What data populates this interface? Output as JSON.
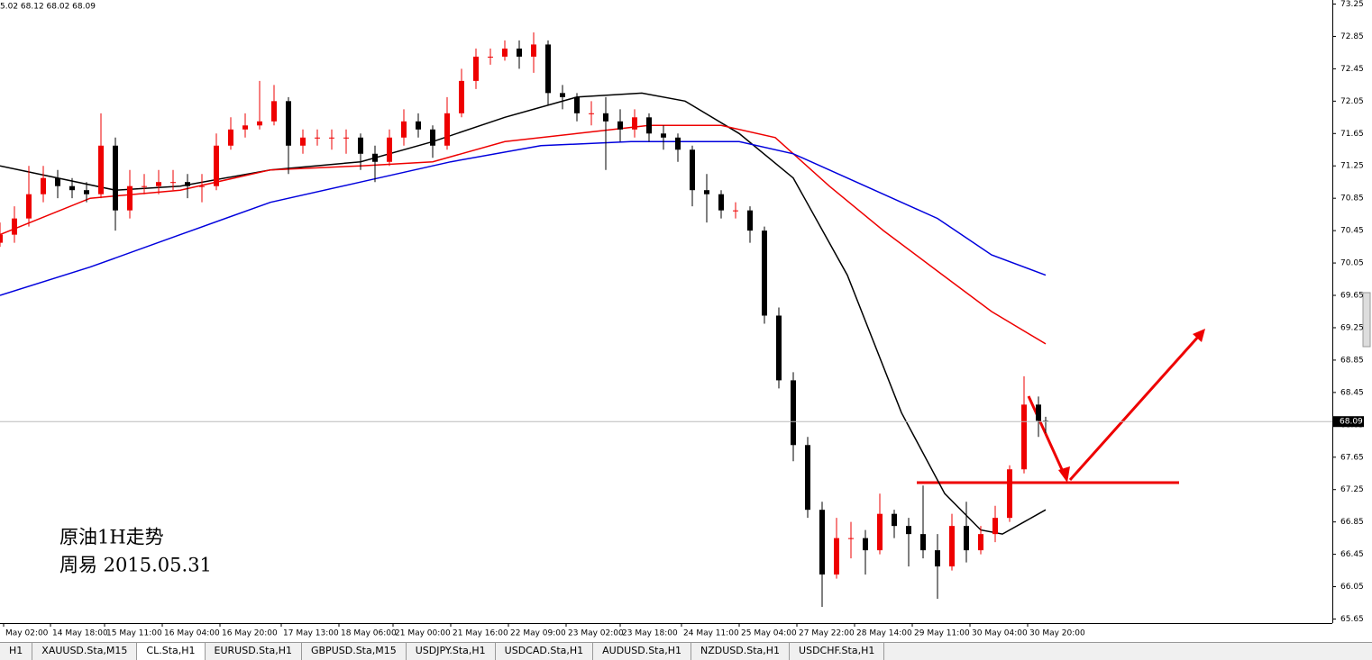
{
  "chart_data": {
    "type": "candlestick",
    "header": "5.02 68.12 68.02 68.09",
    "annotations": [
      "原油1H走势",
      "周易 2015.05.31"
    ],
    "current_price": 68.09,
    "xlim": [
      0,
      369.5
    ],
    "ylim": [
      65.6,
      73.3
    ],
    "yticks": [
      65.65,
      66.05,
      66.45,
      66.85,
      67.25,
      67.65,
      68.05,
      68.45,
      68.85,
      69.25,
      69.65,
      70.05,
      70.45,
      70.85,
      71.25,
      71.65,
      72.05,
      72.45,
      72.85,
      73.25
    ],
    "xticks": [
      {
        "value": 1,
        "label": "May 02:00"
      },
      {
        "value": 14,
        "label": "14 May 18:00"
      },
      {
        "value": 29,
        "label": "15 May 11:00"
      },
      {
        "value": 45,
        "label": "16 May 04:00"
      },
      {
        "value": 61,
        "label": "16 May 20:00"
      },
      {
        "value": 78,
        "label": "17 May 13:00"
      },
      {
        "value": 94,
        "label": "18 May 06:00"
      },
      {
        "value": 109,
        "label": "21 May 00:00"
      },
      {
        "value": 125,
        "label": "21 May 16:00"
      },
      {
        "value": 141,
        "label": "22 May 09:00"
      },
      {
        "value": 157,
        "label": "23 May 02:00"
      },
      {
        "value": 172,
        "label": "23 May 18:00"
      },
      {
        "value": 189,
        "label": "24 May 11:00"
      },
      {
        "value": 205,
        "label": "25 May 04:00"
      },
      {
        "value": 221,
        "label": "27 May 22:00"
      },
      {
        "value": 237,
        "label": "28 May 14:00"
      },
      {
        "value": 253,
        "label": "29 May 11:00"
      },
      {
        "value": 269,
        "label": "30 May 04:00"
      },
      {
        "value": 285,
        "label": "30 May 20:00"
      }
    ],
    "up_color": "#ee0000",
    "down_color": "#000000",
    "x": [
      0,
      4,
      8,
      12,
      16,
      20,
      24,
      28,
      32,
      36,
      40,
      44,
      48,
      52,
      56,
      60,
      64,
      68,
      72,
      76,
      80,
      84,
      88,
      92,
      96,
      100,
      104,
      108,
      112,
      116,
      120,
      124,
      128,
      132,
      136,
      140,
      144,
      148,
      152,
      156,
      160,
      164,
      168,
      172,
      176,
      180,
      184,
      188,
      192,
      196,
      200,
      204,
      208,
      212,
      216,
      220,
      224,
      228,
      232,
      236,
      240,
      244,
      248,
      252,
      256,
      260,
      264,
      268,
      272,
      276,
      280,
      284,
      288,
      290
    ],
    "open": [
      70.3,
      70.4,
      70.6,
      70.9,
      71.1,
      71.0,
      70.95,
      70.9,
      71.5,
      70.7,
      71.0,
      71.0,
      71.05,
      71.05,
      71.0,
      71.0,
      71.5,
      71.7,
      71.75,
      71.8,
      72.05,
      71.5,
      71.6,
      71.6,
      71.6,
      71.6,
      71.4,
      71.3,
      71.6,
      71.8,
      71.7,
      71.5,
      71.9,
      72.3,
      72.6,
      72.6,
      72.7,
      72.6,
      72.75,
      72.15,
      72.1,
      71.9,
      71.9,
      71.8,
      71.7,
      71.85,
      71.65,
      71.6,
      71.45,
      70.95,
      70.9,
      70.7,
      70.7,
      70.45,
      69.4,
      68.6,
      67.8,
      67.0,
      66.2,
      66.65,
      66.65,
      66.5,
      66.95,
      66.8,
      66.7,
      66.5,
      66.3,
      66.8,
      66.5,
      66.7,
      66.9,
      67.5,
      68.3,
      68.1
    ],
    "high": [
      70.55,
      70.75,
      71.25,
      71.25,
      71.2,
      71.1,
      71.05,
      71.9,
      71.6,
      71.2,
      71.15,
      71.2,
      71.2,
      71.15,
      71.15,
      71.65,
      71.85,
      71.9,
      72.3,
      72.25,
      72.1,
      71.7,
      71.7,
      71.7,
      71.7,
      71.65,
      71.5,
      71.7,
      71.95,
      71.9,
      71.75,
      72.1,
      72.45,
      72.7,
      72.7,
      72.8,
      72.8,
      72.9,
      72.8,
      72.25,
      72.15,
      72.05,
      72.1,
      71.95,
      71.95,
      71.9,
      71.75,
      71.65,
      71.5,
      71.15,
      70.95,
      70.8,
      70.75,
      70.5,
      69.5,
      68.7,
      67.9,
      67.1,
      66.9,
      66.85,
      66.75,
      67.2,
      67.0,
      66.9,
      67.3,
      66.7,
      66.95,
      67.1,
      66.8,
      67.05,
      67.55,
      68.65,
      68.4,
      68.15
    ],
    "low": [
      70.25,
      70.3,
      70.5,
      70.8,
      70.85,
      70.85,
      70.8,
      70.85,
      70.45,
      70.6,
      70.9,
      70.9,
      70.95,
      70.85,
      70.8,
      70.95,
      71.45,
      71.6,
      71.7,
      71.75,
      71.15,
      71.4,
      71.5,
      71.45,
      71.4,
      71.2,
      71.05,
      71.25,
      71.5,
      71.6,
      71.35,
      71.45,
      71.85,
      72.2,
      72.5,
      72.55,
      72.45,
      72.4,
      72.0,
      71.95,
      71.8,
      71.75,
      71.2,
      71.55,
      71.6,
      71.55,
      71.45,
      71.3,
      70.75,
      70.55,
      70.6,
      70.6,
      70.3,
      69.3,
      68.5,
      67.6,
      66.9,
      65.8,
      66.15,
      66.4,
      66.2,
      66.45,
      66.65,
      66.3,
      66.4,
      65.9,
      66.25,
      66.35,
      66.45,
      66.6,
      66.85,
      67.45,
      67.9,
      67.95
    ],
    "close": [
      70.4,
      70.6,
      70.9,
      71.1,
      71.0,
      70.95,
      70.9,
      71.5,
      70.7,
      71.0,
      71.0,
      71.05,
      71.05,
      71.0,
      71.0,
      71.5,
      71.7,
      71.75,
      71.8,
      72.05,
      71.5,
      71.6,
      71.6,
      71.6,
      71.6,
      71.4,
      71.3,
      71.6,
      71.8,
      71.7,
      71.5,
      71.9,
      72.3,
      72.6,
      72.6,
      72.7,
      72.6,
      72.75,
      72.15,
      72.1,
      71.9,
      71.9,
      71.8,
      71.7,
      71.85,
      71.65,
      71.6,
      71.45,
      70.95,
      70.9,
      70.7,
      70.7,
      70.45,
      69.4,
      68.6,
      67.8,
      67.0,
      66.2,
      66.65,
      66.65,
      66.5,
      66.95,
      66.8,
      66.7,
      66.5,
      66.3,
      66.8,
      66.5,
      66.7,
      66.9,
      67.5,
      68.3,
      68.1,
      68.09
    ],
    "lines": [
      {
        "color": "#000000",
        "x": [
          0,
          32,
          50,
          75,
          100,
          120,
          140,
          160,
          178,
          190,
          205,
          220,
          235,
          250,
          262,
          272,
          278,
          284,
          290
        ],
        "values": [
          71.25,
          70.95,
          71.0,
          71.2,
          71.3,
          71.55,
          71.85,
          72.1,
          72.15,
          72.05,
          71.65,
          71.1,
          69.9,
          68.2,
          67.2,
          66.75,
          66.7,
          66.85,
          67.0
        ]
      },
      {
        "color": "#ee0000",
        "x": [
          0,
          25,
          50,
          75,
          100,
          120,
          140,
          160,
          180,
          200,
          215,
          230,
          245,
          260,
          275,
          290
        ],
        "values": [
          70.4,
          70.85,
          70.95,
          71.2,
          71.25,
          71.3,
          71.55,
          71.65,
          71.75,
          71.75,
          71.6,
          71.0,
          70.45,
          69.95,
          69.45,
          69.05
        ]
      },
      {
        "color": "#0000dd",
        "x": [
          0,
          25,
          50,
          75,
          100,
          125,
          150,
          175,
          205,
          220,
          240,
          260,
          275,
          290
        ],
        "values": [
          69.65,
          70.0,
          70.4,
          70.8,
          71.05,
          71.3,
          71.5,
          71.55,
          71.55,
          71.4,
          71.0,
          70.6,
          70.15,
          69.9
        ]
      }
    ]
  },
  "tabs": [
    "H1",
    "XAUUSD.Sta,M15",
    "CL.Sta,H1",
    "EURUSD.Sta,H1",
    "GBPUSD.Sta,M15",
    "USDJPY.Sta,H1",
    "USDCAD.Sta,H1",
    "AUDUSD.Sta,H1",
    "NZDUSD.Sta,H1",
    "USDCHF.Sta,H1"
  ]
}
